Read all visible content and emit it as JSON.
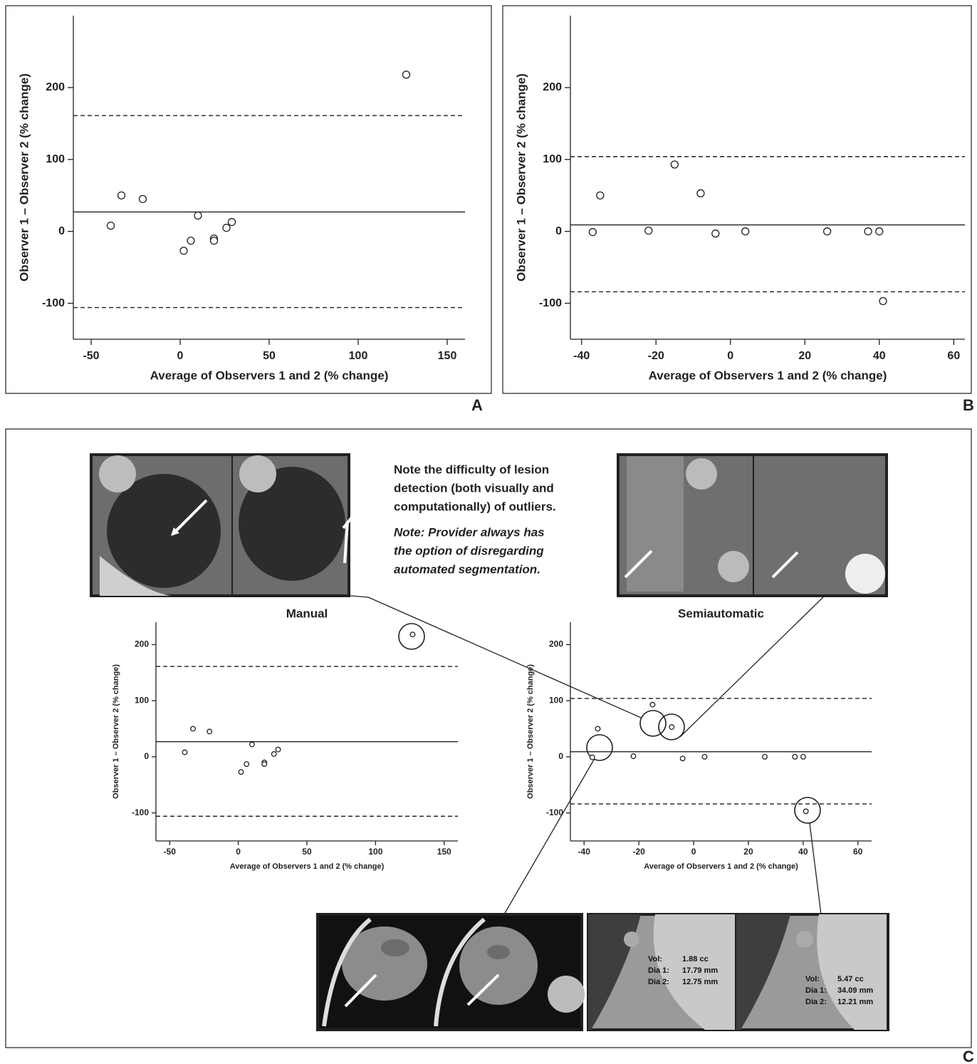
{
  "panel_labels": [
    "A",
    "B",
    "C"
  ],
  "note": {
    "lines": [
      "Note the difficulty of lesion",
      "detection (both visually and",
      "computationally) of outliers."
    ],
    "italic_lines": [
      "Note: Provider always has",
      "the option of disregarding",
      "automated segmentation."
    ]
  },
  "image_captions": [
    [
      {
        "label": "Vol:",
        "value": "1.88 cc"
      },
      {
        "label": "Dia 1:",
        "value": "17.79 mm"
      },
      {
        "label": "Dia 2:",
        "value": "12.75 mm"
      }
    ],
    [
      {
        "label": "Vol:",
        "value": "5.47 cc"
      },
      {
        "label": "Dia 1:",
        "value": "34.09 mm"
      },
      {
        "label": "Dia 2:",
        "value": "12.21 mm"
      }
    ]
  ],
  "chart_data": [
    {
      "type": "scatter",
      "xlabel": "Average of Observers 1 and 2 (% change)",
      "ylabel": "Observer 1 – Observer 2 (% change)",
      "x": [
        -39,
        -33,
        -21,
        2,
        6,
        10,
        19,
        19,
        26,
        29,
        127
      ],
      "y": [
        8,
        50,
        45,
        -27,
        -13,
        22,
        -10,
        -13,
        5,
        13,
        218
      ],
      "xlim": [
        -60,
        160
      ],
      "ylim": [
        -150,
        300
      ],
      "xticks": [
        -50,
        0,
        50,
        100,
        150
      ],
      "yticks": [
        -100,
        0,
        100,
        200
      ],
      "hlines": [
        {
          "value": 27,
          "style": "solid"
        },
        {
          "value": 161,
          "style": "dashed"
        },
        {
          "value": -106,
          "style": "dashed"
        }
      ]
    },
    {
      "type": "scatter",
      "xlabel": "Average of Observers 1 and 2 (% change)",
      "ylabel": "Observer 1 – Observer 2 (% change)",
      "x": [
        -37,
        -35,
        -22,
        -15,
        -8,
        -4,
        4,
        26,
        37,
        40,
        41
      ],
      "y": [
        -1,
        50,
        1,
        93,
        53,
        -3,
        0,
        0,
        0,
        0,
        -97
      ],
      "xlim": [
        -43,
        63
      ],
      "ylim": [
        -150,
        300
      ],
      "xticks": [
        -40,
        -20,
        0,
        20,
        40,
        60
      ],
      "yticks": [
        -100,
        0,
        100,
        200
      ],
      "hlines": [
        {
          "value": 9,
          "style": "solid"
        },
        {
          "value": 104,
          "style": "dashed"
        },
        {
          "value": -84,
          "style": "dashed"
        }
      ]
    },
    {
      "type": "scatter",
      "title": "Manual",
      "xlabel": "Average of Observers 1 and 2 (% change)",
      "ylabel": "Observer 1 – Observer 2 (% change)",
      "x": [
        -39,
        -33,
        -21,
        2,
        6,
        10,
        19,
        19,
        26,
        29,
        127
      ],
      "y": [
        8,
        50,
        45,
        -27,
        -13,
        22,
        -10,
        -13,
        5,
        13,
        218
      ],
      "xlim": [
        -60,
        160
      ],
      "ylim": [
        -150,
        240
      ],
      "xticks": [
        -50,
        0,
        50,
        100,
        150
      ],
      "yticks": [
        -100,
        0,
        100,
        200
      ],
      "hlines": [
        {
          "value": 27,
          "style": "solid"
        },
        {
          "value": 161,
          "style": "dashed"
        },
        {
          "value": -106,
          "style": "dashed"
        }
      ]
    },
    {
      "type": "scatter",
      "title": "Semiautomatic",
      "xlabel": "Average of Observers 1 and 2 (% change)",
      "ylabel": "Observer 1 – Observer 2 (% change)",
      "x": [
        -37,
        -35,
        -22,
        -15,
        -8,
        -4,
        4,
        26,
        37,
        40,
        41
      ],
      "y": [
        -1,
        50,
        1,
        93,
        53,
        -3,
        0,
        0,
        0,
        0,
        -97
      ],
      "xlim": [
        -45,
        65
      ],
      "ylim": [
        -150,
        240
      ],
      "xticks": [
        -40,
        -20,
        0,
        20,
        40,
        60
      ],
      "yticks": [
        -100,
        0,
        100,
        200
      ],
      "hlines": [
        {
          "value": 9,
          "style": "solid"
        },
        {
          "value": 104,
          "style": "dashed"
        },
        {
          "value": -84,
          "style": "dashed"
        }
      ]
    }
  ]
}
